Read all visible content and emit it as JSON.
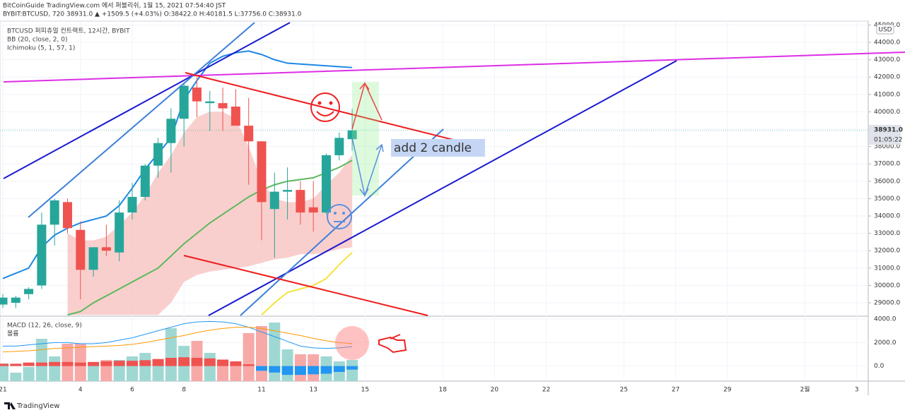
{
  "header": {
    "line1": "BitCoinGuide TradingView.com 에서 퍼블리쉬, 1월 15, 2021 07:54:40 JST",
    "line2": "BYBIT:BTCUSD, 720 38931.0 ▲ +1509.5 (+4.03%) O:38422.0 H:40181.5 L:37756.0 C:38931.0"
  },
  "footer": "TradingView",
  "chart_data": {
    "type": "candlestick",
    "title": "BTCUSD 퍼피츄얼 컨트랙트, 12시간, BYBIT",
    "indicators": [
      "BB (20, close, 2, 0)",
      "Ichimoku (5, 1, 57, 1)"
    ],
    "currency": "USD",
    "annotation": "add 2 candle",
    "price_label": "38931.0",
    "countdown": "01:05:22",
    "up_color": "#26a69a",
    "down_color": "#ef5350",
    "categories": [
      "21",
      null,
      null,
      null,
      null,
      null,
      "4",
      null,
      null,
      null,
      "6",
      null,
      null,
      null,
      "8",
      null,
      null,
      null,
      null,
      null,
      "11",
      null,
      null,
      null,
      "13",
      null,
      null,
      null,
      "15",
      null,
      null,
      null,
      null,
      null,
      "18",
      null,
      null,
      null,
      "20",
      null,
      null,
      null,
      "22",
      null,
      null,
      null,
      null,
      null,
      "25",
      null,
      null,
      null,
      "27",
      null,
      null,
      null,
      "29",
      null,
      null,
      null,
      null,
      null,
      "2월",
      null,
      null,
      null,
      "3"
    ],
    "open": [
      28900,
      29000,
      29500,
      30000,
      33500,
      34800,
      33200,
      30900,
      32200,
      31900,
      34200,
      35100,
      36900,
      38200,
      39600,
      41400,
      40500,
      40500,
      40300,
      39200,
      38300,
      34400,
      35400,
      35500,
      34500,
      34200,
      37500,
      38422,
      null,
      null,
      null,
      null,
      null,
      null,
      null,
      null,
      null,
      null,
      null,
      null,
      null,
      null,
      null,
      null,
      null,
      null,
      null,
      null,
      null,
      null,
      null,
      null,
      null,
      null,
      null,
      null,
      null,
      null,
      null,
      null,
      null,
      null,
      null,
      null,
      null,
      null,
      null
    ],
    "high": [
      29500,
      29400,
      29900,
      34200,
      35000,
      35000,
      33700,
      32200,
      33500,
      34900,
      35900,
      37000,
      38500,
      40200,
      41600,
      42000,
      41200,
      41400,
      41300,
      40800,
      38300,
      36500,
      36800,
      36000,
      36000,
      37600,
      38800,
      40181.5,
      null,
      null,
      null,
      null,
      null,
      null,
      null,
      null,
      null,
      null,
      null,
      null,
      null,
      null,
      null,
      null,
      null,
      null,
      null,
      null,
      null,
      null,
      null,
      null,
      null,
      null,
      null,
      null,
      null,
      null,
      null,
      null,
      null,
      null,
      null,
      null,
      null,
      null,
      null
    ],
    "low": [
      28700,
      28700,
      29200,
      29800,
      32300,
      33000,
      29200,
      30500,
      31700,
      31400,
      33800,
      34900,
      36200,
      36500,
      38000,
      39700,
      38900,
      38900,
      39200,
      35800,
      32600,
      31600,
      33800,
      33500,
      33100,
      34100,
      37200,
      37756,
      null,
      null,
      null,
      null,
      null,
      null,
      null,
      null,
      null,
      null,
      null,
      null,
      null,
      null,
      null,
      null,
      null,
      null,
      null,
      null,
      null,
      null,
      null,
      null,
      null,
      null,
      null,
      null,
      null,
      null,
      null,
      null,
      null,
      null,
      null,
      null,
      null,
      null,
      null
    ],
    "close": [
      29300,
      29300,
      29800,
      33500,
      34900,
      33300,
      30900,
      32200,
      32000,
      34200,
      35100,
      36900,
      38200,
      39600,
      41500,
      40600,
      40600,
      40200,
      39200,
      38300,
      34800,
      35400,
      35500,
      34200,
      34200,
      37500,
      38500,
      38931,
      null,
      null,
      null,
      null,
      null,
      null,
      null,
      null,
      null,
      null,
      null,
      null,
      null,
      null,
      null,
      null,
      null,
      null,
      null,
      null,
      null,
      null,
      null,
      null,
      null,
      null,
      null,
      null,
      null,
      null,
      null,
      null,
      null,
      null,
      null,
      null,
      null,
      null,
      null
    ],
    "overlays": [
      {
        "color": "#1e88e5",
        "values": [
          30400,
          30700,
          31000,
          32200,
          32900,
          33300,
          33600,
          33800,
          34000,
          34600,
          35600,
          36700,
          37600,
          38500,
          40700,
          41800,
          42800,
          43200,
          43400,
          43500,
          43300,
          43000,
          42800,
          42750,
          42700,
          42650,
          42600,
          42550,
          null,
          null,
          null,
          null,
          null,
          null,
          null,
          null,
          null,
          null,
          null,
          null,
          null,
          null,
          null,
          null,
          null,
          null,
          null,
          null,
          null,
          null,
          null,
          null,
          null,
          null,
          null,
          null,
          null,
          null,
          null,
          null,
          null,
          null,
          null,
          null,
          null,
          null,
          null
        ]
      },
      {
        "color": "#5cb85c",
        "values": [
          null,
          null,
          null,
          null,
          null,
          28300,
          28500,
          29000,
          29400,
          29800,
          30200,
          30600,
          31000,
          31700,
          32400,
          33000,
          33600,
          34100,
          34600,
          35100,
          35500,
          35800,
          36000,
          36100,
          36200,
          36500,
          36800,
          37200,
          null,
          null,
          null,
          null,
          null,
          null,
          null,
          null,
          null,
          null,
          null,
          null,
          null,
          null,
          null,
          null,
          null,
          null,
          null,
          null,
          null,
          null,
          null,
          null,
          null,
          null,
          null,
          null,
          null,
          null,
          null,
          null,
          null,
          null,
          null,
          null,
          null,
          null,
          null
        ]
      },
      {
        "color": "#f5e23b",
        "values": [
          null,
          null,
          null,
          null,
          null,
          null,
          null,
          null,
          null,
          null,
          null,
          null,
          null,
          null,
          null,
          null,
          null,
          null,
          null,
          null,
          28300,
          29000,
          29600,
          29800,
          30000,
          30400,
          31200,
          31900,
          null,
          null,
          null,
          null,
          null,
          null,
          null,
          null,
          null,
          null,
          null,
          null,
          null,
          null,
          null,
          null,
          null,
          null,
          null,
          null,
          null,
          null,
          null,
          null,
          null,
          null,
          null,
          null,
          null,
          null,
          null,
          null,
          null,
          null,
          null,
          null,
          null,
          null,
          null
        ]
      }
    ],
    "cloud": {
      "color": "#f8c3c0",
      "upper": [
        null,
        null,
        null,
        null,
        null,
        33000,
        32600,
        32600,
        32800,
        33500,
        34200,
        35200,
        36500,
        37500,
        38800,
        39700,
        40000,
        40000,
        39600,
        38000,
        36000,
        35000,
        34800,
        34800,
        35000,
        35800,
        36500,
        37500,
        null,
        null,
        null,
        null,
        null,
        null,
        null,
        null,
        null,
        null,
        null,
        null,
        null,
        null,
        null,
        null,
        null,
        null,
        null,
        null,
        null,
        null,
        null,
        null,
        null,
        null,
        null,
        null,
        null,
        null,
        null,
        null,
        null,
        null,
        null,
        null,
        null,
        null,
        null
      ],
      "lower": [
        null,
        null,
        null,
        null,
        null,
        28300,
        28300,
        28300,
        28300,
        28300,
        28300,
        28300,
        28300,
        29000,
        30200,
        30600,
        30800,
        30900,
        31000,
        31100,
        31300,
        31500,
        31600,
        31800,
        31800,
        31900,
        32100,
        32200,
        null,
        null,
        null,
        null,
        null,
        null,
        null,
        null,
        null,
        null,
        null,
        null,
        null,
        null,
        null,
        null,
        null,
        null,
        null,
        null,
        null,
        null,
        null,
        null,
        null,
        null,
        null,
        null,
        null,
        null,
        null,
        null,
        null,
        null,
        null,
        null,
        null,
        null,
        null
      ]
    },
    "ylim": [
      28270,
      45220
    ],
    "yticks": [
      {
        "value": 29000,
        "label": "29000.0"
      },
      {
        "value": 30000,
        "label": "30000.0"
      },
      {
        "value": 31000,
        "label": "31000.0"
      },
      {
        "value": 32000,
        "label": "32000.0"
      },
      {
        "value": 33000,
        "label": "33000.0"
      },
      {
        "value": 34000,
        "label": "34000.0"
      },
      {
        "value": 35000,
        "label": "35000.0"
      },
      {
        "value": 36000,
        "label": "36000.0"
      },
      {
        "value": 37000,
        "label": "37000.0"
      },
      {
        "value": 38000,
        "label": "38000.0"
      },
      {
        "value": 39000,
        "label": "39000.0"
      },
      {
        "value": 40000,
        "label": "40000.0"
      },
      {
        "value": 41000,
        "label": "41000.0"
      },
      {
        "value": 42000,
        "label": "42000.0"
      },
      {
        "value": 43000,
        "label": "43000.0"
      },
      {
        "value": 44000,
        "label": "44000.0"
      },
      {
        "value": 45000,
        "label": "45000.0"
      }
    ],
    "macd": {
      "title": "MACD (12, 26, close, 9)",
      "volume_title": "볼륨",
      "volume_up_color": "#9fd8d3",
      "volume_down_color": "#f7a9a7",
      "volume": [
        25,
        12,
        20,
        60,
        35,
        53,
        53,
        25,
        30,
        30,
        35,
        40,
        30,
        75,
        50,
        57,
        40,
        30,
        25,
        68,
        78,
        83,
        45,
        38,
        38,
        35,
        28,
        30,
        null,
        null,
        null,
        null,
        null,
        null,
        null,
        null,
        null,
        null,
        null,
        null,
        null,
        null,
        null,
        null,
        null,
        null,
        null,
        null,
        null,
        null,
        null,
        null,
        null,
        null,
        null,
        null,
        null,
        null,
        null,
        null,
        null,
        null,
        null,
        null,
        null,
        null,
        null
      ],
      "hist_up_color": "#ef5350",
      "hist_down_color": "#2196f3",
      "histogram": [
        200,
        200,
        300,
        300,
        350,
        350,
        300,
        350,
        400,
        450,
        450,
        500,
        600,
        700,
        750,
        700,
        650,
        550,
        400,
        150,
        -400,
        -550,
        -750,
        -750,
        -700,
        -650,
        -500,
        -300,
        null,
        null,
        null,
        null,
        null,
        null,
        null,
        null,
        null,
        null,
        null,
        null,
        null,
        null,
        null,
        null,
        null,
        null,
        null,
        null,
        null,
        null,
        null,
        null,
        null,
        null,
        null,
        null,
        null,
        null,
        null,
        null,
        null,
        null,
        null,
        null,
        null,
        null,
        null
      ],
      "lines": [
        {
          "color": "#2196f3",
          "values": [
            1700,
            1700,
            1800,
            1900,
            2000,
            2000,
            1900,
            1900,
            2000,
            2200,
            2400,
            2700,
            3000,
            3300,
            3600,
            3750,
            3800,
            3750,
            3600,
            3300,
            2900,
            2500,
            2100,
            1700,
            1550,
            1500,
            1550,
            1650,
            null,
            null,
            null,
            null,
            null,
            null,
            null,
            null,
            null,
            null,
            null,
            null,
            null,
            null,
            null,
            null,
            null,
            null,
            null,
            null,
            null,
            null,
            null,
            null,
            null,
            null,
            null,
            null,
            null,
            null,
            null,
            null,
            null,
            null,
            null,
            null,
            null,
            null,
            null
          ]
        },
        {
          "color": "#ff9800",
          "values": [
            1200,
            1250,
            1300,
            1400,
            1500,
            1550,
            1600,
            1650,
            1700,
            1750,
            1850,
            2000,
            2200,
            2400,
            2600,
            2850,
            3050,
            3200,
            3300,
            3300,
            3200,
            3000,
            2800,
            2600,
            2350,
            2150,
            2000,
            1900,
            null,
            null,
            null,
            null,
            null,
            null,
            null,
            null,
            null,
            null,
            null,
            null,
            null,
            null,
            null,
            null,
            null,
            null,
            null,
            null,
            null,
            null,
            null,
            null,
            null,
            null,
            null,
            null,
            null,
            null,
            null,
            null,
            null,
            null,
            null,
            null,
            null,
            null,
            null
          ]
        }
      ],
      "ylim": [
        -1280,
        4180
      ],
      "yticks": [
        {
          "value": 0,
          "label": "0.0"
        },
        {
          "value": 2000,
          "label": "2000.0"
        },
        {
          "value": 4000,
          "label": "4000.0"
        }
      ]
    }
  }
}
